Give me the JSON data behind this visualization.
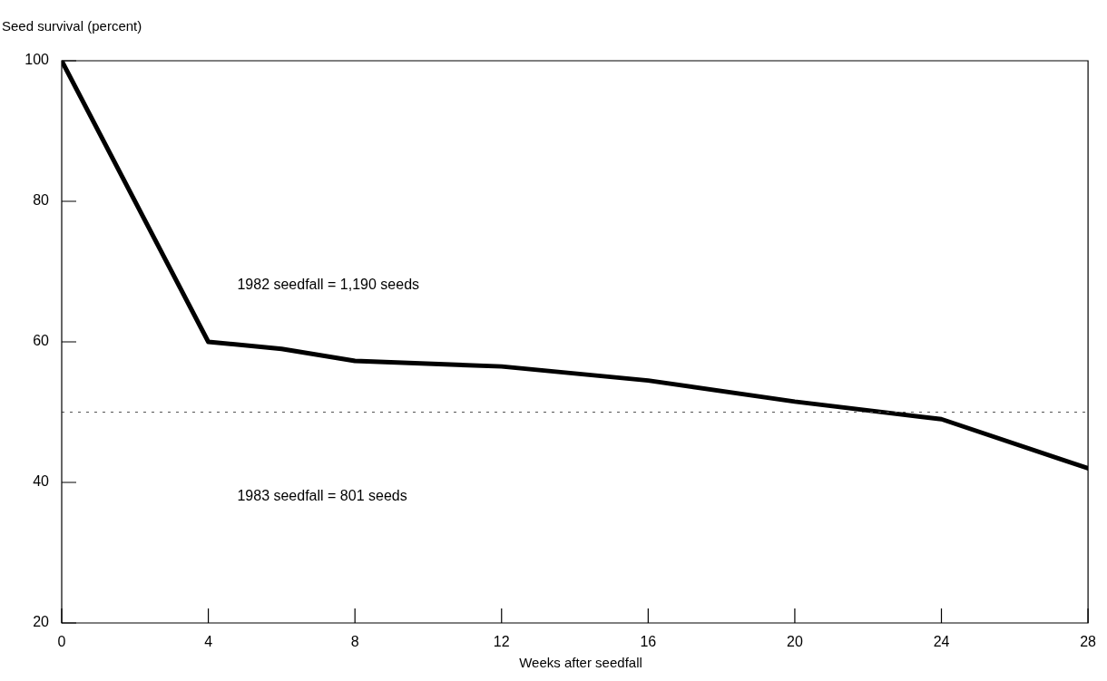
{
  "chart_data": {
    "type": "line",
    "ylabel": "Seed survival (percent)",
    "xlabel": "Weeks after seedfall",
    "x": [
      0,
      4,
      6,
      8,
      12,
      16,
      20,
      24,
      28
    ],
    "series": [
      {
        "color": "#000000",
        "values": [
          100,
          60,
          59,
          57.3,
          56.5,
          54.5,
          51.5,
          49,
          42
        ]
      }
    ],
    "xlim": [
      0,
      28
    ],
    "xticks": [
      0,
      4,
      8,
      12,
      16,
      20,
      24,
      28
    ],
    "ylim": [
      20,
      100
    ],
    "yticks": [
      20,
      40,
      60,
      80,
      100
    ],
    "ref_lines": [
      {
        "axis": "y",
        "value": 50,
        "color": "#555555",
        "line_style": "dotted"
      }
    ],
    "annotations": [
      "1982 seedfall = 1,190 seeds",
      "1983 seedfall = 801 seeds"
    ],
    "grid": false,
    "legend": false,
    "marker": "none",
    "line_style": "solid"
  }
}
